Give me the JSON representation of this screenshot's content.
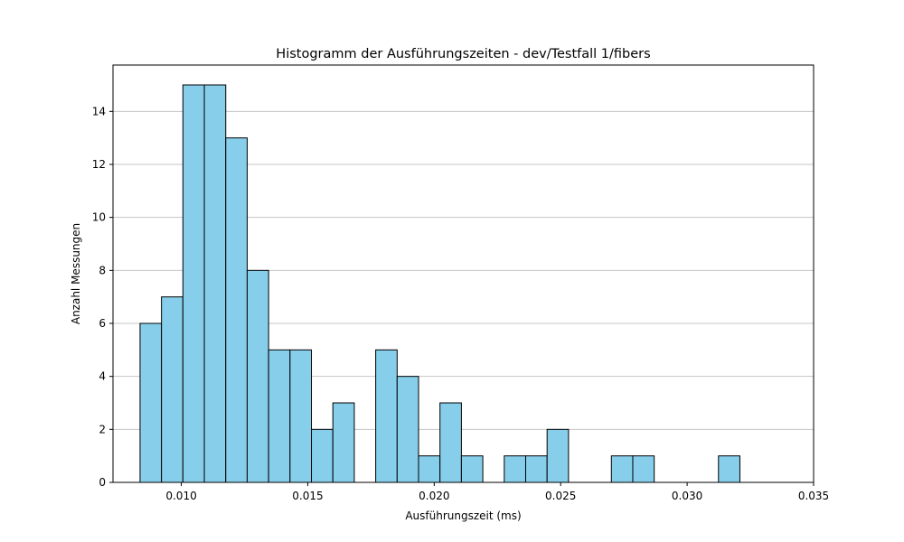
{
  "chart_data": {
    "type": "bar",
    "title": "Histogramm der Ausführungszeiten - dev/Testfall 1/fibers",
    "xlabel": "Ausführungszeit (ms)",
    "ylabel": "Anzahl Messungen",
    "xlim": [
      0.0073,
      0.035
    ],
    "ylim": [
      0,
      15.75
    ],
    "x_ticks": [
      0.01,
      0.015,
      0.02,
      0.025,
      0.03,
      0.035
    ],
    "x_tick_labels": [
      "0.010",
      "0.015",
      "0.020",
      "0.025",
      "0.030",
      "0.035"
    ],
    "y_ticks": [
      0,
      2,
      4,
      6,
      8,
      10,
      12,
      14
    ],
    "y_tick_labels": [
      "0",
      "2",
      "4",
      "6",
      "8",
      "10",
      "12",
      "14"
    ],
    "grid": "y",
    "bin_start": 0.00837,
    "bin_width": 0.000847,
    "counts": [
      6,
      7,
      15,
      15,
      13,
      8,
      5,
      5,
      2,
      3,
      0,
      5,
      4,
      1,
      3,
      1,
      0,
      1,
      1,
      2,
      0,
      0,
      1,
      1,
      0,
      0,
      0,
      1
    ],
    "colors": {
      "bar_fill": "#87ceeb",
      "bar_edge": "#000000",
      "grid": "#c4c4c4",
      "axis": "#000000"
    }
  }
}
